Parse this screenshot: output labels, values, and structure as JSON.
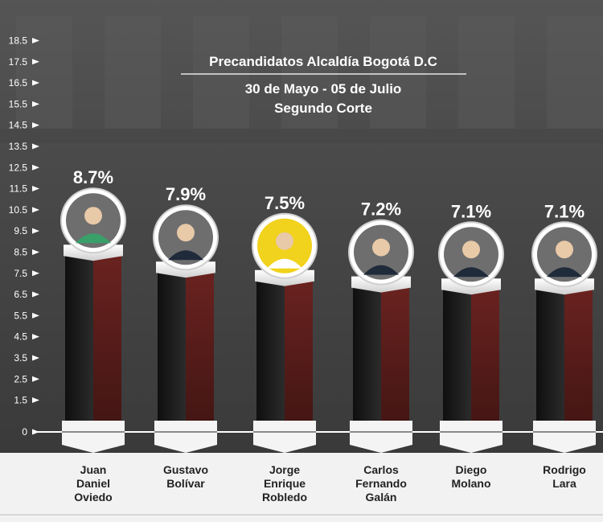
{
  "header": {
    "title": "Precandidatos Alcaldía Bogotá D.C",
    "subtitle_dates": "30 de Mayo - 05 de Julio",
    "subtitle_cut": "Segundo Corte"
  },
  "chart_data": {
    "type": "bar",
    "title": "Precandidatos Alcaldía Bogotá D.C",
    "subtitle": "30 de Mayo - 05 de Julio · Segundo Corte",
    "categories": [
      "Juan Daniel Oviedo",
      "Gustavo Bolívar",
      "Jorge Enrique Robledo",
      "Carlos Fernando Galán",
      "Diego Molano",
      "Rodrigo Lara"
    ],
    "category_lines": [
      [
        "Juan",
        "Daniel",
        "Oviedo"
      ],
      [
        "Gustavo",
        "Bolívar"
      ],
      [
        "Jorge",
        "Enrique",
        "Robledo"
      ],
      [
        "Carlos",
        "Fernando",
        "Galán"
      ],
      [
        "Diego",
        "Molano"
      ],
      [
        "Rodrigo",
        "Lara"
      ]
    ],
    "values": [
      8.7,
      7.9,
      7.5,
      7.2,
      7.1,
      7.1
    ],
    "value_labels": [
      "8.7%",
      "7.9%",
      "7.5%",
      "7.2%",
      "7.1%",
      "7.1%"
    ],
    "yticks": [
      "0",
      "1.5",
      "2.5",
      "3.5",
      "4.5",
      "5.5",
      "6.5",
      "7.5",
      "8.5",
      "9.5",
      "10.5",
      "11.5",
      "12.5",
      "13.5",
      "14.5",
      "15.5",
      "16.5",
      "17.5",
      "18.5"
    ],
    "ylim": [
      0,
      18.5
    ],
    "xlabel": "",
    "ylabel": "",
    "grid": false,
    "legend": "none",
    "colors": {
      "bar_left": "#1a1a1a",
      "bar_right": "#5a1c1a",
      "band": "#f2f2f2",
      "axis_text": "#ffffff",
      "label_text": "#222222",
      "photo_fill": "#6e6e6e",
      "photo_fill_highlight": "#f1d21c"
    }
  }
}
